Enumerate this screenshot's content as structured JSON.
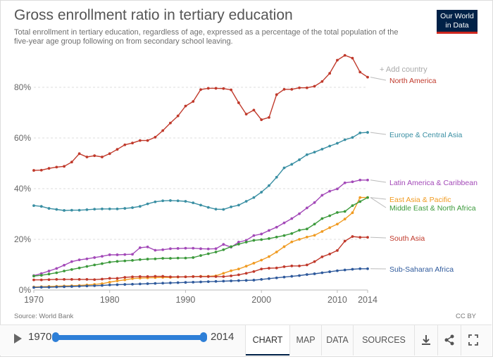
{
  "header": {
    "title": "Gross enrollment ratio in tertiary education",
    "subtitle": "Total enrollment in tertiary education, regardless of age, expressed as a percentage of the total population of the five-year age group following on from secondary school leaving.",
    "logo_line1": "Our World",
    "logo_line2": "in Data"
  },
  "add_country_label": "+ Add country",
  "footer": {
    "source": "Source: World Bank",
    "license": "CC BY"
  },
  "controls": {
    "start_year": "1970",
    "end_year": "2014",
    "tabs": [
      "CHART",
      "MAP",
      "DATA",
      "SOURCES"
    ],
    "active_tab": "CHART"
  },
  "colors": {
    "north_america": "#c0392b",
    "europe_central_asia": "#3a8fa3",
    "latin_america": "#a349b8",
    "east_asia_pacific": "#f09b22",
    "middle_east": "#3c9a3c",
    "south_asia": "#c0392b",
    "sub_saharan": "#2f5a9c"
  },
  "chart_data": {
    "type": "line",
    "title": "Gross enrollment ratio in tertiary education",
    "xlabel": "",
    "ylabel": "",
    "xlim": [
      1970,
      2014
    ],
    "ylim": [
      0,
      90
    ],
    "x_ticks": [
      "1970",
      "1980",
      "1990",
      "2000",
      "2010",
      "2014"
    ],
    "y_ticks": [
      "0%",
      "20%",
      "40%",
      "60%",
      "80%"
    ],
    "x": [
      1970,
      1971,
      1972,
      1973,
      1974,
      1975,
      1976,
      1977,
      1978,
      1979,
      1980,
      1981,
      1982,
      1983,
      1984,
      1985,
      1986,
      1987,
      1988,
      1989,
      1990,
      1991,
      1992,
      1993,
      1994,
      1995,
      1996,
      1997,
      1998,
      1999,
      2000,
      2001,
      2002,
      2003,
      2004,
      2005,
      2006,
      2007,
      2008,
      2009,
      2010,
      2011,
      2012,
      2013,
      2014
    ],
    "series": [
      {
        "name": "North America",
        "color": "#c0392b",
        "label_value": 84.0,
        "values": [
          47.2,
          47.3,
          48.0,
          48.5,
          48.8,
          50.5,
          53.8,
          52.5,
          53.0,
          52.5,
          53.8,
          55.5,
          57.3,
          58.0,
          59.0,
          59.0,
          60.3,
          62.9,
          65.9,
          68.7,
          72.6,
          74.4,
          79.1,
          79.6,
          79.6,
          79.5,
          79.0,
          73.9,
          69.4,
          71.0,
          67.2,
          68.1,
          77.1,
          79.2,
          79.2,
          79.8,
          79.8,
          80.4,
          82.3,
          85.5,
          90.7,
          92.6,
          91.5,
          86.0,
          84.0
        ]
      },
      {
        "name": "Europe & Central Asia",
        "color": "#3a8fa3",
        "label_value": 62.2,
        "values": [
          33.3,
          33.0,
          32.2,
          31.8,
          31.4,
          31.5,
          31.5,
          31.7,
          31.9,
          32.0,
          32.0,
          32.0,
          32.2,
          32.5,
          33.0,
          34.0,
          34.8,
          35.2,
          35.3,
          35.2,
          35.0,
          34.4,
          33.5,
          32.6,
          31.9,
          31.8,
          32.8,
          33.5,
          35.0,
          36.5,
          38.6,
          41.2,
          44.5,
          48.2,
          49.6,
          51.4,
          53.4,
          54.4,
          55.6,
          56.8,
          57.9,
          59.3,
          60.2,
          62.0,
          62.2
        ]
      },
      {
        "name": "Latin America & Caribbean",
        "color": "#a349b8",
        "label_value": 43.4,
        "values": [
          5.7,
          6.5,
          7.5,
          8.5,
          9.8,
          11.2,
          11.9,
          12.3,
          12.8,
          13.3,
          13.9,
          13.9,
          14.0,
          14.1,
          16.7,
          17.0,
          15.7,
          15.9,
          16.3,
          16.4,
          16.5,
          16.5,
          16.3,
          16.2,
          16.3,
          18.0,
          16.9,
          18.9,
          19.6,
          21.5,
          22.1,
          23.5,
          24.8,
          26.5,
          28.2,
          30.1,
          32.4,
          34.5,
          37.4,
          39.0,
          39.9,
          42.3,
          42.7,
          43.4,
          43.4
        ]
      },
      {
        "name": "East Asia & Pacific",
        "color": "#f09b22",
        "label_value": 36.5,
        "values": [
          1.2,
          1.3,
          1.4,
          1.5,
          1.6,
          1.7,
          1.8,
          2.0,
          2.2,
          2.5,
          3.1,
          3.6,
          4.0,
          4.5,
          4.7,
          4.8,
          4.9,
          5.0,
          5.0,
          5.1,
          5.2,
          5.3,
          5.4,
          5.4,
          5.6,
          6.6,
          7.6,
          8.3,
          9.4,
          10.6,
          11.8,
          13.2,
          15.0,
          17.1,
          19.0,
          20.0,
          20.9,
          21.6,
          23.1,
          24.6,
          26.0,
          28.0,
          30.5,
          36.5,
          36.5
        ]
      },
      {
        "name": "Middle East & North Africa",
        "color": "#3c9a3c",
        "label_value": 36.5,
        "values": [
          5.5,
          5.8,
          6.3,
          6.8,
          7.5,
          8.1,
          8.7,
          9.3,
          9.9,
          10.4,
          11.0,
          11.3,
          11.5,
          11.7,
          12.0,
          12.2,
          12.3,
          12.5,
          12.5,
          12.6,
          12.6,
          12.8,
          13.6,
          14.3,
          15.0,
          15.9,
          17.1,
          18.1,
          18.9,
          19.6,
          19.9,
          20.3,
          20.9,
          21.5,
          22.3,
          23.6,
          24.1,
          26.0,
          28.2,
          29.3,
          30.6,
          31.0,
          33.3,
          34.9,
          36.5
        ]
      },
      {
        "name": "South Asia",
        "color": "#c0392b",
        "label_value": 20.8,
        "values": [
          4.0,
          4.0,
          4.1,
          4.2,
          4.2,
          4.2,
          4.2,
          4.2,
          4.1,
          4.3,
          4.6,
          4.6,
          5.0,
          5.2,
          5.3,
          5.3,
          5.4,
          5.4,
          5.2,
          5.2,
          5.2,
          5.3,
          5.3,
          5.3,
          5.3,
          5.3,
          5.6,
          6.0,
          6.6,
          7.3,
          8.3,
          8.6,
          8.7,
          9.2,
          9.5,
          9.5,
          9.9,
          11.2,
          13.1,
          14.2,
          15.6,
          19.3,
          21.1,
          20.8,
          20.8
        ]
      },
      {
        "name": "Sub-Saharan Africa",
        "color": "#2f5a9c",
        "label_value": 8.4,
        "values": [
          1.0,
          1.1,
          1.1,
          1.2,
          1.3,
          1.4,
          1.5,
          1.6,
          1.7,
          1.8,
          2.0,
          2.1,
          2.2,
          2.3,
          2.4,
          2.5,
          2.6,
          2.7,
          2.8,
          2.9,
          3.0,
          3.1,
          3.2,
          3.3,
          3.4,
          3.5,
          3.6,
          3.7,
          3.8,
          3.9,
          4.2,
          4.5,
          4.8,
          5.1,
          5.4,
          5.7,
          6.1,
          6.4,
          6.8,
          7.2,
          7.6,
          7.9,
          8.2,
          8.4,
          8.4
        ]
      }
    ]
  }
}
